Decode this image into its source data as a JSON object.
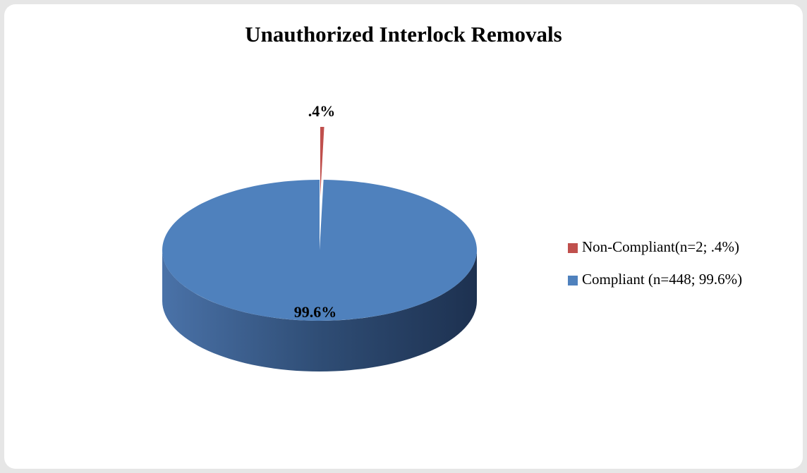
{
  "chart_data": {
    "type": "pie",
    "title": "Unauthorized Interlock Removals",
    "categories": [
      "Non-Compliant(n=2; .4%)",
      "Compliant (n=448; 99.6%)"
    ],
    "values": [
      0.4,
      99.6
    ],
    "value_labels": [
      ".4%",
      "99.6%"
    ],
    "colors": [
      "#c0504d",
      "#4f81bd"
    ],
    "legend": "right"
  }
}
